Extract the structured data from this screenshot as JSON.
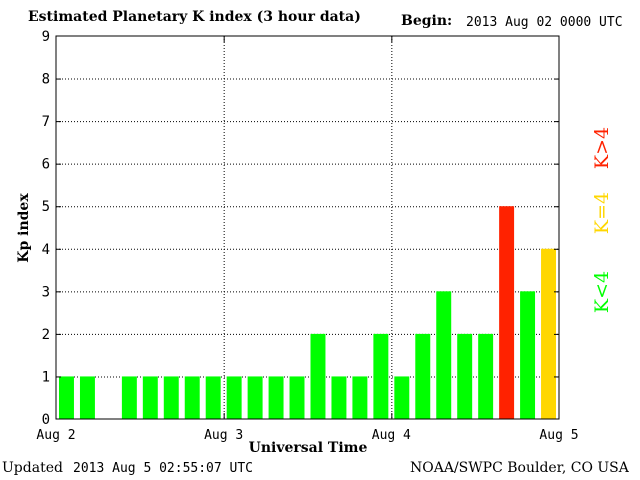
{
  "header": {
    "title": "Estimated Planetary K index (3 hour data)",
    "begin_label": "Begin:",
    "begin_value": "2013 Aug 02 0000 UTC"
  },
  "footer": {
    "updated_label": "Updated",
    "updated_value": "2013 Aug  5 02:55:07 UTC",
    "source": "NOAA/SWPC Boulder, CO USA"
  },
  "colors": {
    "low": "#00ff00",
    "moderate": "#ffd700",
    "high": "#ff2200",
    "axis": "#000000",
    "grid": "#000000",
    "background": "#ffffff"
  },
  "chart_data": {
    "type": "bar",
    "title": "Estimated Planetary K index (3 hour data)",
    "xlabel": "Universal Time",
    "ylabel": "Kp index",
    "ylim": [
      0,
      9
    ],
    "yticks": [
      "0",
      "1",
      "2",
      "3",
      "4",
      "5",
      "6",
      "7",
      "8",
      "9"
    ],
    "xticks": [
      "Aug 2",
      "Aug 3",
      "Aug 4",
      "Aug 5"
    ],
    "grid": true,
    "interval_hours": 3,
    "values": [
      1,
      1,
      null,
      1,
      1,
      1,
      1,
      1,
      1,
      1,
      1,
      1,
      2,
      1,
      1,
      2,
      1,
      2,
      3,
      2,
      2,
      5,
      3,
      4
    ],
    "legend": [
      {
        "label": "K<4",
        "color": "#00ff00"
      },
      {
        "label": "K=4",
        "color": "#ffd700"
      },
      {
        "label": "K>4",
        "color": "#ff2200"
      }
    ]
  }
}
